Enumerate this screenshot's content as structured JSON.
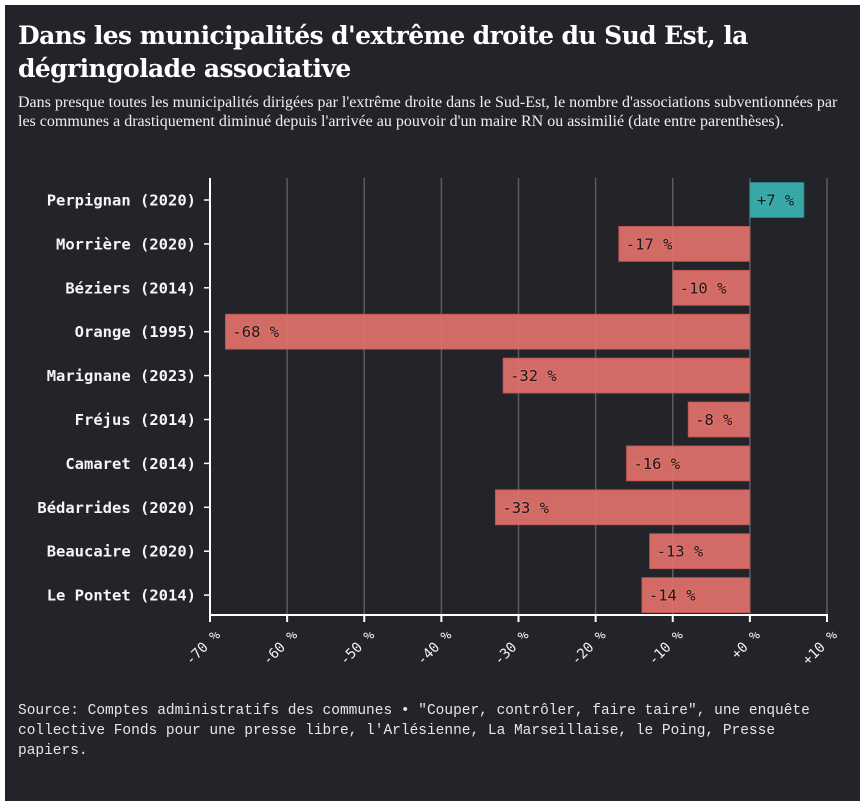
{
  "header": {
    "title": "Dans les municipalités d'extrême droite du Sud Est, la dégringolade associative",
    "subtitle": "Dans presque toutes les municipalités dirigées par l'extrême droite dans le Sud-Est, le nombre d'associations subventionnées par les communes a drastiquement diminué depuis l'arrivée au pouvoir d'un maire RN ou assimilié (date entre parenthèses)."
  },
  "footer": {
    "source": "Source: Comptes administratifs des communes • \"Couper, contrôler, faire taire\", une enquête collective Fonds pour une presse libre, l'Arlésienne, La Marseillaise, le Poing, Presse papiers."
  },
  "colors": {
    "background": "#232429",
    "negative": "#e0706a",
    "positive": "#3ab1b0",
    "grid": "#5a5b60",
    "axis": "#ffffff"
  },
  "chart_data": {
    "type": "bar",
    "orientation": "horizontal",
    "title": "Dans les municipalités d'extrême droite du Sud Est, la dégringolade associative",
    "xlabel": "",
    "ylabel": "",
    "xlim": [
      -70,
      10
    ],
    "x_ticks": [
      -70,
      -60,
      -50,
      -40,
      -30,
      -20,
      -10,
      0,
      10
    ],
    "x_tick_labels": [
      "-70 %",
      "-60 %",
      "-50 %",
      "-40 %",
      "-30 %",
      "-20 %",
      "-10 %",
      "+0 %",
      "+10 %"
    ],
    "grid": "vertical",
    "categories": [
      "Perpignan (2020)",
      "Morrière (2020)",
      "Béziers (2014)",
      "Orange (1995)",
      "Marignane (2023)",
      "Fréjus (2014)",
      "Camaret (2014)",
      "Bédarrides (2020)",
      "Beaucaire (2020)",
      "Le Pontet (2014)"
    ],
    "values": [
      7,
      -17,
      -10,
      -68,
      -32,
      -8,
      -16,
      -33,
      -13,
      -14
    ],
    "value_labels": [
      "+7 %",
      "-17 %",
      "-10 %",
      "-68 %",
      "-32 %",
      "-8 %",
      "-16 %",
      "-33 %",
      "-13 %",
      "-14 %"
    ],
    "unit": "%"
  }
}
